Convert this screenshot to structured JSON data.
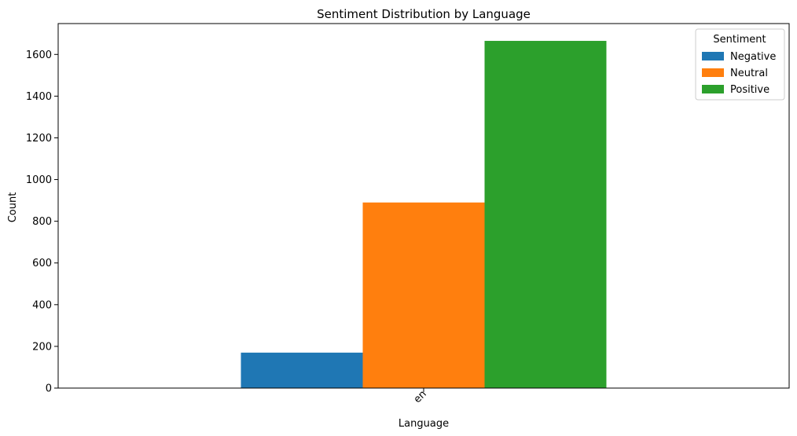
{
  "chart_data": {
    "type": "bar",
    "title": "Sentiment Distribution by Language",
    "xlabel": "Language",
    "ylabel": "Count",
    "categories": [
      "en"
    ],
    "series": [
      {
        "name": "Negative",
        "values": [
          170
        ],
        "color": "#1f77b4"
      },
      {
        "name": "Neutral",
        "values": [
          890
        ],
        "color": "#ff7f0e"
      },
      {
        "name": "Positive",
        "values": [
          1665
        ],
        "color": "#2ca02c"
      }
    ],
    "ylim": [
      0,
      1748
    ],
    "yticks": [
      0,
      200,
      400,
      600,
      800,
      1000,
      1200,
      1400,
      1600
    ],
    "grid": false,
    "legend": {
      "title": "Sentiment",
      "placement": "top-right"
    }
  }
}
